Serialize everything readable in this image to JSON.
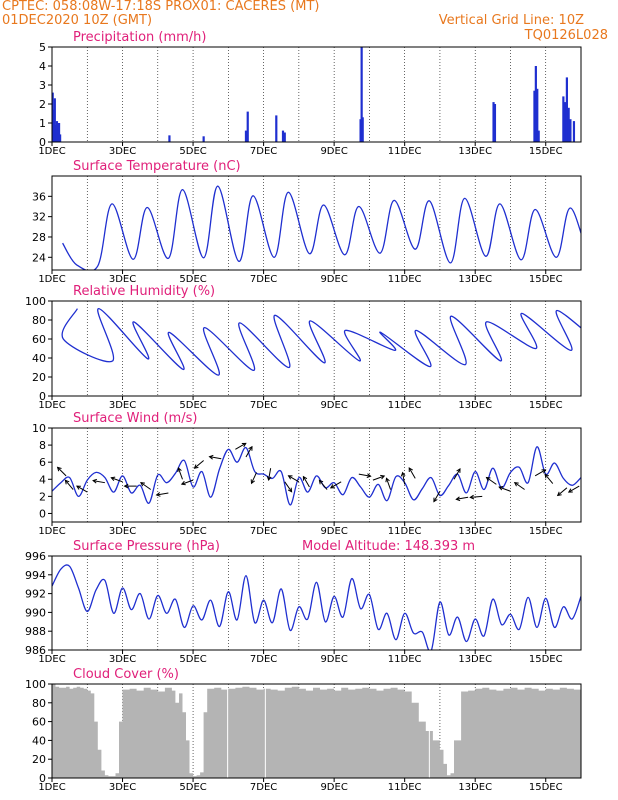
{
  "header": {
    "line1": "CPTEC:   058:08W-17:18S   PROX01: CACERES (MT)",
    "line2": "01DEC2020  10Z (GMT)",
    "right1": "Vertical Grid Line: 10Z",
    "right2": "TQ0126L028",
    "colors": {
      "header": "#e8781e",
      "title": "#e0207a",
      "series": "#1f2fd0",
      "cloud": "#b4b4b4",
      "axis": "#000000"
    }
  },
  "chart_data": [
    {
      "type": "bar",
      "title": "Precipitation (mm/h)",
      "ylim": [
        0,
        5
      ],
      "yticks": [
        0,
        1,
        2,
        3,
        4,
        5
      ],
      "xlim": [
        1,
        16
      ],
      "xticks": [
        1,
        3,
        5,
        7,
        9,
        11,
        13,
        15
      ],
      "xticklabels": [
        "1DEC",
        "3DEC",
        "5DEC",
        "7DEC",
        "9DEC",
        "11DEC",
        "13DEC",
        "15DEC"
      ],
      "points": [
        [
          1.02,
          2.6
        ],
        [
          1.05,
          1.7
        ],
        [
          1.08,
          2.3
        ],
        [
          1.11,
          0.9
        ],
        [
          1.14,
          1.1
        ],
        [
          1.17,
          0.6
        ],
        [
          1.2,
          1.0
        ],
        [
          1.23,
          0.4
        ],
        [
          4.33,
          0.35
        ],
        [
          5.3,
          0.3
        ],
        [
          6.5,
          0.6
        ],
        [
          6.55,
          1.6
        ],
        [
          7.36,
          1.4
        ],
        [
          7.55,
          0.6
        ],
        [
          7.6,
          0.5
        ],
        [
          9.75,
          1.2
        ],
        [
          9.78,
          5.0
        ],
        [
          9.81,
          1.3
        ],
        [
          13.52,
          2.1
        ],
        [
          13.56,
          2.0
        ],
        [
          14.68,
          2.7
        ],
        [
          14.72,
          4.0
        ],
        [
          14.76,
          2.8
        ],
        [
          14.8,
          0.6
        ],
        [
          15.5,
          2.4
        ],
        [
          15.55,
          2.1
        ],
        [
          15.6,
          3.4
        ],
        [
          15.65,
          1.8
        ],
        [
          15.7,
          1.2
        ],
        [
          15.8,
          1.1
        ]
      ]
    },
    {
      "type": "line",
      "title": "Surface Temperature (nC)",
      "ylim": [
        21.5,
        40
      ],
      "yticks": [
        24,
        28,
        32,
        36
      ],
      "xlim": [
        1,
        16
      ],
      "xticks": [
        1,
        3,
        5,
        7,
        9,
        11,
        13,
        15
      ],
      "xticklabels": [
        "1DEC",
        "3DEC",
        "5DEC",
        "7DEC",
        "9DEC",
        "11DEC",
        "13DEC",
        "15DEC"
      ],
      "min_hour": 0.3,
      "mins": [
        26.8,
        22.3,
        23.6,
        23.8,
        23.9,
        23.2,
        24.0,
        24.7,
        24.5,
        24.8,
        25.6,
        22.9,
        24.2,
        23.5,
        24.0,
        23.6
      ],
      "max_hour": 0.7,
      "maxs": [
        22.5,
        34.5,
        33.8,
        37.3,
        38.0,
        36.1,
        36.8,
        34.3,
        34.0,
        35.2,
        35.1,
        35.6,
        34.5,
        33.4,
        33.7,
        31.6
      ]
    },
    {
      "type": "line",
      "title": "Relative Humidity (%)",
      "ylim": [
        0,
        100
      ],
      "yticks": [
        0,
        20,
        40,
        60,
        80,
        100
      ],
      "xlim": [
        1,
        16
      ],
      "xticks": [
        1,
        3,
        5,
        7,
        9,
        11,
        13,
        15
      ],
      "xticklabels": [
        "1DEC",
        "3DEC",
        "5DEC",
        "7DEC",
        "9DEC",
        "11DEC",
        "13DEC",
        "15DEC"
      ],
      "min_hour": 0.72,
      "mins": [
        92,
        37,
        39,
        28,
        22,
        27,
        30,
        35,
        37,
        48,
        31,
        33,
        37,
        50,
        48,
        52
      ],
      "max_hour": 0.32,
      "maxs": [
        60,
        92,
        78,
        67,
        72,
        77,
        85,
        79,
        69,
        67,
        69,
        84,
        78,
        87,
        90,
        92
      ]
    },
    {
      "type": "line",
      "title": "Surface Wind (m/s)",
      "ylim": [
        -1,
        10
      ],
      "yticks": [
        0,
        2,
        4,
        6,
        8,
        10
      ],
      "xlim": [
        1,
        16
      ],
      "xticks": [
        1,
        3,
        5,
        7,
        9,
        11,
        13,
        15
      ],
      "xticklabels": [
        "1DEC",
        "3DEC",
        "5DEC",
        "7DEC",
        "9DEC",
        "11DEC",
        "13DEC",
        "15DEC"
      ],
      "x": [
        1,
        1.25,
        1.5,
        1.75,
        2,
        2.25,
        2.5,
        2.75,
        3,
        3.25,
        3.5,
        3.75,
        4,
        4.25,
        4.5,
        4.75,
        5,
        5.25,
        5.5,
        5.75,
        6,
        6.25,
        6.5,
        6.75,
        7,
        7.25,
        7.5,
        7.75,
        8,
        8.25,
        8.5,
        8.75,
        9,
        9.25,
        9.5,
        9.75,
        10,
        10.25,
        10.5,
        10.75,
        11,
        11.25,
        11.5,
        11.75,
        12,
        12.25,
        12.5,
        12.75,
        13,
        13.25,
        13.5,
        13.75,
        14,
        14.25,
        14.5,
        14.75,
        15,
        15.25,
        15.5,
        15.75,
        16
      ],
      "y": [
        2.6,
        3.6,
        4.2,
        2.0,
        3.9,
        4.8,
        4.2,
        2.5,
        4.4,
        2.4,
        3.3,
        1.2,
        4.5,
        3.6,
        4.7,
        6.2,
        3.1,
        4.9,
        1.9,
        5.2,
        7.5,
        6.0,
        7.7,
        4.9,
        4.6,
        4.1,
        4.9,
        1.0,
        4.2,
        2.5,
        4.4,
        3.0,
        3.6,
        2.2,
        4.2,
        3.1,
        1.9,
        3.4,
        1.5,
        4.3,
        3.6,
        1.6,
        2.9,
        4.2,
        2.1,
        3.3,
        4.6,
        2.4,
        4.9,
        2.8,
        5.3,
        3.0,
        4.8,
        5.4,
        3.6,
        7.8,
        4.6,
        5.9,
        4.1,
        3.3,
        4.2
      ],
      "arrows": [
        [
          1.4,
          4.4,
          225
        ],
        [
          1.6,
          2.8,
          230
        ],
        [
          2,
          2.5,
          210
        ],
        [
          2.5,
          3.6,
          190
        ],
        [
          3,
          3.7,
          200
        ],
        [
          3.4,
          3.2,
          180
        ],
        [
          3.8,
          2.8,
          215
        ],
        [
          4.3,
          2.4,
          170
        ],
        [
          4.7,
          4.0,
          250
        ],
        [
          5,
          3.9,
          160
        ],
        [
          5.3,
          6.2,
          140
        ],
        [
          5.8,
          6.4,
          190
        ],
        [
          6.2,
          7.5,
          330
        ],
        [
          6.5,
          6.6,
          300
        ],
        [
          6.8,
          4.8,
          115
        ],
        [
          7.2,
          5.3,
          100
        ],
        [
          7.6,
          3.7,
          55
        ],
        [
          8,
          3.7,
          210
        ],
        [
          8.3,
          3.1,
          240
        ],
        [
          8.8,
          2.8,
          230
        ],
        [
          9.2,
          3.7,
          150
        ],
        [
          9.7,
          4.6,
          10
        ],
        [
          10.1,
          3.9,
          340
        ],
        [
          10.6,
          2.8,
          250
        ],
        [
          11,
          3.4,
          260
        ],
        [
          11.3,
          4.1,
          240
        ],
        [
          12,
          2.6,
          120
        ],
        [
          12.4,
          4.0,
          300
        ],
        [
          12.8,
          1.9,
          170
        ],
        [
          13.2,
          2.0,
          175
        ],
        [
          13.6,
          3.4,
          215
        ],
        [
          14,
          2.6,
          200
        ],
        [
          14.4,
          2.8,
          215
        ],
        [
          14.7,
          4.4,
          330
        ],
        [
          15.2,
          3.5,
          230
        ],
        [
          15.6,
          3.0,
          140
        ],
        [
          15.95,
          3.2,
          150
        ]
      ]
    },
    {
      "type": "line",
      "title": "Surface Pressure (hPa)",
      "subtitle": "Model Altitude: 148.393  m",
      "ylim": [
        986,
        996
      ],
      "yticks": [
        986,
        988,
        990,
        992,
        994,
        996
      ],
      "xlim": [
        1,
        16
      ],
      "xticks": [
        1,
        3,
        5,
        7,
        9,
        11,
        13,
        15
      ],
      "xticklabels": [
        "1DEC",
        "3DEC",
        "5DEC",
        "7DEC",
        "9DEC",
        "11DEC",
        "13DEC",
        "15DEC"
      ],
      "x": [
        1,
        1.25,
        1.5,
        1.75,
        2,
        2.25,
        2.5,
        2.75,
        3,
        3.25,
        3.5,
        3.75,
        4,
        4.25,
        4.5,
        4.75,
        5,
        5.25,
        5.5,
        5.75,
        6,
        6.25,
        6.5,
        6.75,
        7,
        7.25,
        7.5,
        7.75,
        8,
        8.25,
        8.5,
        8.75,
        9,
        9.25,
        9.5,
        9.75,
        10,
        10.25,
        10.5,
        10.75,
        11,
        11.25,
        11.5,
        11.75,
        12,
        12.25,
        12.5,
        12.75,
        13,
        13.25,
        13.5,
        13.75,
        14,
        14.25,
        14.5,
        14.75,
        15,
        15.25,
        15.5,
        15.75,
        16
      ],
      "y": [
        992.8,
        994.6,
        994.9,
        992.6,
        990.1,
        992.4,
        993.4,
        989.9,
        992.6,
        990.3,
        992.0,
        989.3,
        991.8,
        989.9,
        991.4,
        988.4,
        990.7,
        989.2,
        991.3,
        988.5,
        992.2,
        989.2,
        993.9,
        988.9,
        991.3,
        988.9,
        992.5,
        988.1,
        990.6,
        989.3,
        993.2,
        989.0,
        991.7,
        989.5,
        993.6,
        990.4,
        991.9,
        988.2,
        989.9,
        987.1,
        989.9,
        987.8,
        987.9,
        985.9,
        991.1,
        987.6,
        989.5,
        986.9,
        989.3,
        987.5,
        991.4,
        988.7,
        989.8,
        988.2,
        991.6,
        988.4,
        991.5,
        988.4,
        990.6,
        989.3,
        991.7
      ]
    },
    {
      "type": "area",
      "title": "Cloud Cover (%)",
      "ylim": [
        0,
        100
      ],
      "yticks": [
        0,
        20,
        40,
        60,
        80,
        100
      ],
      "xlim": [
        1,
        16
      ],
      "xticks": [
        1,
        3,
        5,
        7,
        9,
        11,
        13,
        15
      ],
      "xticklabels": [
        "1DEC",
        "3DEC",
        "5DEC",
        "7DEC",
        "9DEC",
        "11DEC",
        "13DEC",
        "15DEC"
      ],
      "x": [
        1,
        1.1,
        1.2,
        1.3,
        1.4,
        1.5,
        1.6,
        1.7,
        1.8,
        1.9,
        2,
        2.1,
        2.2,
        2.3,
        2.4,
        2.5,
        2.6,
        2.7,
        2.8,
        2.9,
        3,
        3.2,
        3.4,
        3.6,
        3.8,
        4,
        4.2,
        4.4,
        4.5,
        4.6,
        4.7,
        4.8,
        4.9,
        5,
        5.1,
        5.2,
        5.3,
        5.4,
        5.6,
        5.8,
        6,
        6.2,
        6.4,
        6.6,
        6.8,
        7,
        7.2,
        7.4,
        7.6,
        7.8,
        8,
        8.2,
        8.4,
        8.6,
        8.8,
        9,
        9.2,
        9.4,
        9.6,
        9.8,
        10,
        10.2,
        10.4,
        10.6,
        10.8,
        11,
        11.2,
        11.4,
        11.6,
        11.8,
        12,
        12.1,
        12.2,
        12.3,
        12.4,
        12.6,
        12.8,
        13,
        13.2,
        13.4,
        13.6,
        13.8,
        14,
        14.2,
        14.4,
        14.6,
        14.8,
        15,
        15.2,
        15.4,
        15.6,
        15.8,
        16
      ],
      "y": [
        100,
        97,
        96,
        96,
        97,
        95,
        96,
        97,
        96,
        95,
        93,
        90,
        60,
        30,
        8,
        3,
        2,
        2,
        5,
        60,
        94,
        95,
        93,
        96,
        94,
        92,
        96,
        93,
        80,
        90,
        70,
        40,
        5,
        2,
        3,
        6,
        70,
        95,
        96,
        94,
        95,
        96,
        97,
        96,
        94,
        95,
        94,
        93,
        96,
        97,
        95,
        93,
        96,
        94,
        95,
        93,
        96,
        94,
        95,
        96,
        95,
        93,
        95,
        96,
        94,
        92,
        80,
        60,
        50,
        40,
        30,
        15,
        3,
        5,
        40,
        92,
        93,
        95,
        96,
        94,
        93,
        95,
        96,
        94,
        96,
        95,
        93,
        95,
        94,
        96,
        95,
        94,
        96
      ]
    }
  ]
}
